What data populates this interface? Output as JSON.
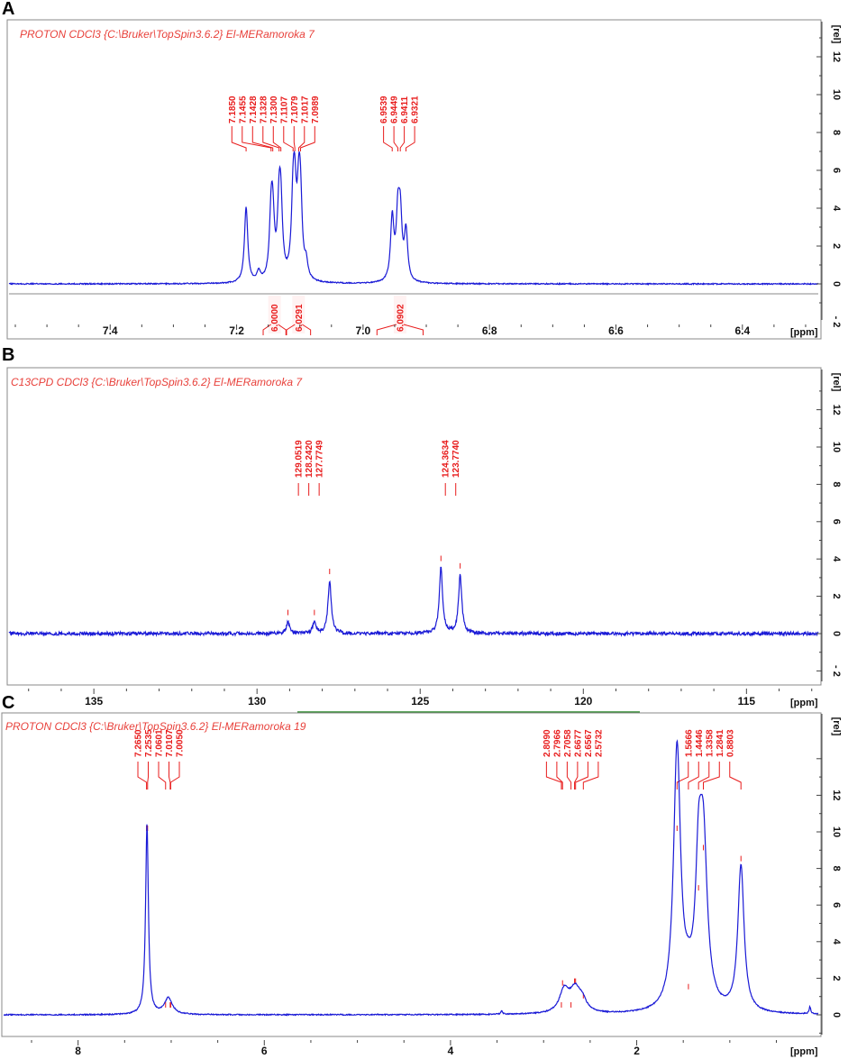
{
  "colors": {
    "spectrum": "#1a1ad6",
    "annotation": "#e81c1c",
    "title": "#e8413b",
    "frame": "#888888",
    "integral_fill": "#fff2f2",
    "scrollbar": "#2e8b2e"
  },
  "chart_data": [
    {
      "type": "line",
      "panel_letter": "A",
      "title": "PROTON CDCl3 {C:\\Bruker\\TopSpin3.6.2} El-MERamoroka 7",
      "x_unit": "[ppm]",
      "y_unit": "[rel]",
      "xlim": [
        7.56,
        6.28
      ],
      "ylim": [
        -3,
        14
      ],
      "x_ticks": [
        "7.4",
        "7.2",
        "7.0",
        "6.8",
        "6.6",
        "6.4"
      ],
      "y_ticks": [
        "- 2",
        "0",
        "2",
        "4",
        "6",
        "8",
        "10",
        "12"
      ],
      "peak_labels": [
        "7.1850",
        "7.1455",
        "7.1428",
        "7.1328",
        "7.1300",
        "7.1107",
        "7.1079",
        "7.1017",
        "7.0989",
        "6.9539",
        "6.9449",
        "6.9411",
        "6.9321"
      ],
      "peak_positions": [
        7.185,
        7.1455,
        7.1428,
        7.1328,
        7.13,
        7.1107,
        7.1079,
        7.1017,
        7.0989,
        6.9539,
        6.9449,
        6.9411,
        6.9321
      ],
      "peaks": [
        {
          "x": 7.185,
          "h": 4.0
        },
        {
          "x": 7.1455,
          "h": 3.0
        },
        {
          "x": 7.1428,
          "h": 2.8
        },
        {
          "x": 7.1328,
          "h": 3.4
        },
        {
          "x": 7.13,
          "h": 3.3
        },
        {
          "x": 7.1107,
          "h": 3.6
        },
        {
          "x": 7.1079,
          "h": 3.5
        },
        {
          "x": 7.1017,
          "h": 3.7
        },
        {
          "x": 7.0989,
          "h": 3.4
        },
        {
          "x": 7.165,
          "h": 0.5
        },
        {
          "x": 7.09,
          "h": 0.8
        },
        {
          "x": 6.9539,
          "h": 3.3
        },
        {
          "x": 6.9449,
          "h": 3.2
        },
        {
          "x": 6.9411,
          "h": 3.1
        },
        {
          "x": 6.9321,
          "h": 2.6
        }
      ],
      "integrals": [
        {
          "label": "6.0000",
          "from": 7.158,
          "to": 7.122
        },
        {
          "label": "6.0291",
          "from": 7.121,
          "to": 7.083
        },
        {
          "label": "6.0902",
          "from": 6.978,
          "to": 6.905
        }
      ]
    },
    {
      "type": "line",
      "panel_letter": "B",
      "title": "C13CPD CDCl3 {C:\\Bruker\\TopSpin3.6.2} El-MERamoroka 7",
      "x_unit": "[ppm]",
      "y_unit": "[rel]",
      "xlim": [
        137.6,
        112.8
      ],
      "ylim": [
        -3,
        13
      ],
      "x_ticks": [
        "135",
        "130",
        "125",
        "120",
        "115"
      ],
      "y_ticks": [
        "- 2",
        "0",
        "2",
        "4",
        "6",
        "8",
        "10",
        "12"
      ],
      "peak_labels": [
        "129.0519",
        "128.2420",
        "127.7749",
        "124.3634",
        "123.7740"
      ],
      "peak_positions": [
        129.0519,
        128.242,
        127.7749,
        124.3634,
        123.774
      ],
      "peaks": [
        {
          "x": 129.0519,
          "h": 0.6
        },
        {
          "x": 128.242,
          "h": 0.6
        },
        {
          "x": 127.7749,
          "h": 2.8
        },
        {
          "x": 124.3634,
          "h": 3.5
        },
        {
          "x": 123.774,
          "h": 3.1
        }
      ]
    },
    {
      "type": "line",
      "panel_letter": "C",
      "title": "PROTON CDCl3 {C:\\Bruker\\TopSpin3.6.2} El-MERamoroka 19",
      "x_unit": "[ppm]",
      "y_unit": "[rel]",
      "xlim": [
        8.8,
        0.05
      ],
      "ylim": [
        -1,
        14.8
      ],
      "x_ticks": [
        "8",
        "6",
        "4",
        "2"
      ],
      "y_ticks": [
        "0",
        "2",
        "4",
        "6",
        "8",
        "10",
        "12"
      ],
      "peak_labels": [
        "7.2650",
        "7.2535",
        "7.0601",
        "7.0107",
        "7.0050",
        "2.8090",
        "2.7966",
        "2.7058",
        "2.6677",
        "2.6567",
        "2.5732",
        "1.5666",
        "1.4446",
        "1.3358",
        "1.2841",
        "0.8803"
      ],
      "peak_positions": [
        7.265,
        7.2535,
        7.0601,
        7.0107,
        7.005,
        2.809,
        2.7966,
        2.7058,
        2.6677,
        2.6567,
        2.5732,
        1.5666,
        1.4446,
        1.3358,
        1.2841,
        0.8803
      ],
      "peaks": [
        {
          "x": 7.26,
          "h": 10.4,
          "w": 0.018
        },
        {
          "x": 7.03,
          "h": 0.9,
          "w": 0.05
        },
        {
          "x": 2.78,
          "h": 1.2,
          "w": 0.06
        },
        {
          "x": 2.66,
          "h": 1.3,
          "w": 0.07
        },
        {
          "x": 2.58,
          "h": 0.5,
          "w": 0.05
        },
        {
          "x": 1.5666,
          "h": 14.3,
          "w": 0.045
        },
        {
          "x": 1.445,
          "h": 1.0,
          "w": 0.06
        },
        {
          "x": 1.335,
          "h": 6.4,
          "w": 0.04
        },
        {
          "x": 1.284,
          "h": 8.6,
          "w": 0.05
        },
        {
          "x": 0.8803,
          "h": 8.0,
          "w": 0.04
        },
        {
          "x": 3.45,
          "h": 0.2,
          "w": 0.01
        },
        {
          "x": 0.14,
          "h": 0.4,
          "w": 0.01
        }
      ]
    }
  ]
}
